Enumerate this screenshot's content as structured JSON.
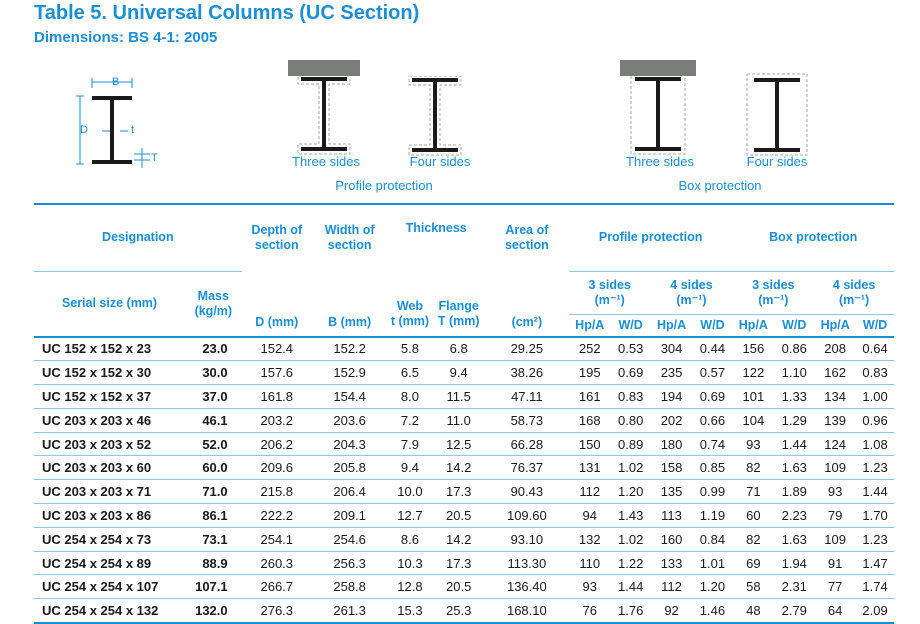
{
  "title": "Table 5. Universal Columns (UC Section)",
  "subtitle": "Dimensions: BS 4-1: 2005",
  "diagram": {
    "labels": {
      "b": "B",
      "d": "D",
      "t": "t",
      "T": "T"
    },
    "figures": [
      "Three sides",
      "Four sides",
      "Three sides",
      "Four sides"
    ],
    "groups": [
      "Profile protection",
      "Box protection"
    ]
  },
  "headers": {
    "designation": "Designation",
    "depth": "Depth of section",
    "width": "Width of section",
    "thickness": "Thickness",
    "area": "Area of section",
    "profile": "Profile protection",
    "box": "Box protection",
    "serial_size": "Serial size (mm)",
    "mass": "Mass (kg/m)",
    "web": "Web",
    "flange": "Flange",
    "three_sides": "3 sides",
    "four_sides": "4 sides",
    "unit_m1": "(m⁻¹)",
    "d_mm": "D (mm)",
    "b_mm": "B (mm)",
    "t_mm": "t (mm)",
    "T_mm": "T (mm)",
    "cm2": "(cm²)",
    "hpa": "Hp/A",
    "wd": "W/D"
  },
  "rows": [
    [
      "UC 152 x 152 x 23",
      "23.0",
      "152.4",
      "152.2",
      "5.8",
      "6.8",
      "29.25",
      "252",
      "0.53",
      "304",
      "0.44",
      "156",
      "0.86",
      "208",
      "0.64"
    ],
    [
      "UC 152 x 152 x 30",
      "30.0",
      "157.6",
      "152.9",
      "6.5",
      "9.4",
      "38.26",
      "195",
      "0.69",
      "235",
      "0.57",
      "122",
      "1.10",
      "162",
      "0.83"
    ],
    [
      "UC 152 x 152 x 37",
      "37.0",
      "161.8",
      "154.4",
      "8.0",
      "11.5",
      "47.11",
      "161",
      "0.83",
      "194",
      "0.69",
      "101",
      "1.33",
      "134",
      "1.00"
    ],
    [
      "UC 203 x 203 x 46",
      "46.1",
      "203.2",
      "203.6",
      "7.2",
      "11.0",
      "58.73",
      "168",
      "0.80",
      "202",
      "0.66",
      "104",
      "1.29",
      "139",
      "0.96"
    ],
    [
      "UC 203 x 203 x 52",
      "52.0",
      "206.2",
      "204.3",
      "7.9",
      "12.5",
      "66.28",
      "150",
      "0.89",
      "180",
      "0.74",
      "93",
      "1.44",
      "124",
      "1.08"
    ],
    [
      "UC 203 x 203 x 60",
      "60.0",
      "209.6",
      "205.8",
      "9.4",
      "14.2",
      "76.37",
      "131",
      "1.02",
      "158",
      "0.85",
      "82",
      "1.63",
      "109",
      "1.23"
    ],
    [
      "UC 203 x 203 x 71",
      "71.0",
      "215.8",
      "206.4",
      "10.0",
      "17.3",
      "90.43",
      "112",
      "1.20",
      "135",
      "0.99",
      "71",
      "1.89",
      "93",
      "1.44"
    ],
    [
      "UC 203 x 203 x 86",
      "86.1",
      "222.2",
      "209.1",
      "12.7",
      "20.5",
      "109.60",
      "94",
      "1.43",
      "113",
      "1.19",
      "60",
      "2.23",
      "79",
      "1.70"
    ],
    [
      "UC 254 x 254 x 73",
      "73.1",
      "254.1",
      "254.6",
      "8.6",
      "14.2",
      "93.10",
      "132",
      "1.02",
      "160",
      "0.84",
      "82",
      "1.63",
      "109",
      "1.23"
    ],
    [
      "UC 254 x 254 x 89",
      "88.9",
      "260.3",
      "256.3",
      "10.3",
      "17.3",
      "113.30",
      "110",
      "1.22",
      "133",
      "1.01",
      "69",
      "1.94",
      "91",
      "1.47"
    ],
    [
      "UC 254 x 254 x 107",
      "107.1",
      "266.7",
      "258.8",
      "12.8",
      "20.5",
      "136.40",
      "93",
      "1.44",
      "112",
      "1.20",
      "58",
      "2.31",
      "77",
      "1.74"
    ],
    [
      "UC 254 x 254 x 132",
      "132.0",
      "276.3",
      "261.3",
      "15.3",
      "25.3",
      "168.10",
      "76",
      "1.76",
      "92",
      "1.46",
      "48",
      "2.79",
      "64",
      "2.09"
    ]
  ]
}
